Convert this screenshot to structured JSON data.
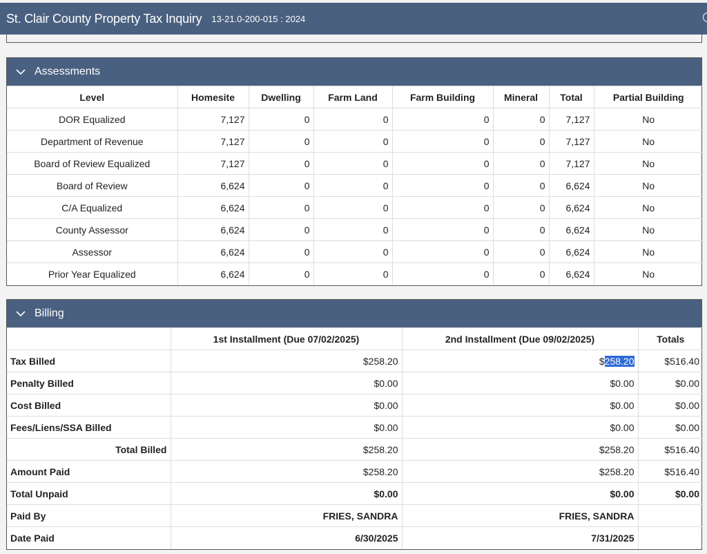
{
  "header": {
    "title": "St. Clair County Property Tax Inquiry",
    "parcel": "13-21.0-200-015 : 2024"
  },
  "assessments": {
    "title": "Assessments",
    "columns": [
      "Level",
      "Homesite",
      "Dwelling",
      "Farm Land",
      "Farm Building",
      "Mineral",
      "Total",
      "Partial Building"
    ],
    "rows": [
      [
        "DOR Equalized",
        "7,127",
        "0",
        "0",
        "0",
        "0",
        "7,127",
        "No"
      ],
      [
        "Department of Revenue",
        "7,127",
        "0",
        "0",
        "0",
        "0",
        "7,127",
        "No"
      ],
      [
        "Board of Review Equalized",
        "7,127",
        "0",
        "0",
        "0",
        "0",
        "7,127",
        "No"
      ],
      [
        "Board of Review",
        "6,624",
        "0",
        "0",
        "0",
        "0",
        "6,624",
        "No"
      ],
      [
        "C/A Equalized",
        "6,624",
        "0",
        "0",
        "0",
        "0",
        "6,624",
        "No"
      ],
      [
        "County Assessor",
        "6,624",
        "0",
        "0",
        "0",
        "0",
        "6,624",
        "No"
      ],
      [
        "Assessor",
        "6,624",
        "0",
        "0",
        "0",
        "0",
        "6,624",
        "No"
      ],
      [
        "Prior Year Equalized",
        "6,624",
        "0",
        "0",
        "0",
        "0",
        "6,624",
        "No"
      ]
    ]
  },
  "billing": {
    "title": "Billing",
    "columns": [
      "",
      "1st Installment (Due 07/02/2025)",
      "2nd Installment (Due 09/02/2025)",
      "Totals"
    ],
    "rows": [
      {
        "label": "Tax Billed",
        "first": "$258.20",
        "second_prefix": "$",
        "second_selected": "258.20",
        "total": "$516.40"
      },
      {
        "label": "Penalty Billed",
        "first": "$0.00",
        "second": "$0.00",
        "total": "$0.00"
      },
      {
        "label": "Cost Billed",
        "first": "$0.00",
        "second": "$0.00",
        "total": "$0.00"
      },
      {
        "label": "Fees/Liens/SSA Billed",
        "first": "$0.00",
        "second": "$0.00",
        "total": "$0.00"
      },
      {
        "label": "Total Billed",
        "first": "$258.20",
        "second": "$258.20",
        "total": "$516.40"
      },
      {
        "label": "Amount Paid",
        "first": "$258.20",
        "second": "$258.20",
        "total": "$516.40"
      },
      {
        "label": "Total Unpaid",
        "first": "$0.00",
        "second": "$0.00",
        "total": "$0.00"
      },
      {
        "label": "Paid By",
        "first": "FRIES, SANDRA",
        "second": "FRIES, SANDRA",
        "total": ""
      },
      {
        "label": "Date Paid",
        "first": "6/30/2025",
        "second": "7/31/2025",
        "total": ""
      }
    ]
  },
  "colors": {
    "header_bg": "#4a6080",
    "selection": "#2f6bd6"
  }
}
